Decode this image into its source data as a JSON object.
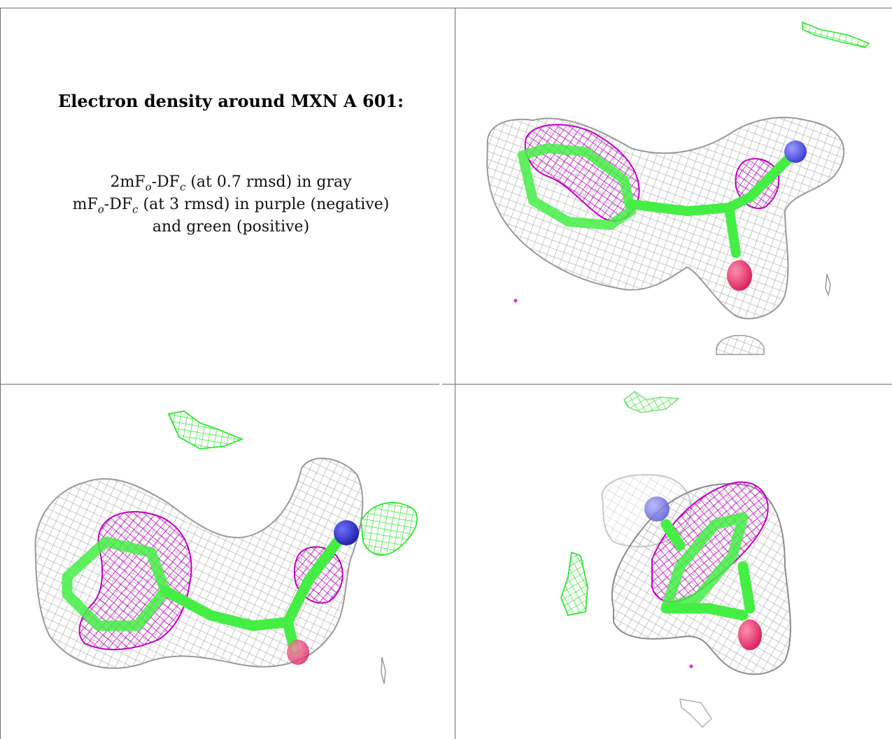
{
  "caption": {
    "title": "Electron density around MXN A 601:",
    "line1": {
      "pre": "2mF",
      "sub1": "o",
      "mid": "-DF",
      "sub2": "c",
      "post": " (at 0.7 rmsd) in gray"
    },
    "line2": {
      "pre": "mF",
      "sub1": "o",
      "mid": "-DF",
      "sub2": "c",
      "post": " (at 3 rmsd) in purple (negative)"
    },
    "line3": "and green (positive)"
  },
  "colors": {
    "map_2fofc": "#a9a9a9",
    "map_fofc_negative": "#c000c0",
    "map_fofc_positive": "#2ee62e",
    "carbon_stick": "#44ee44",
    "nitrogen": "#3b3bd6",
    "oxygen": "#e8336a",
    "frame": "#6e6e6e"
  },
  "panels": [
    {
      "name": "view-top-right"
    },
    {
      "name": "view-bottom-left"
    },
    {
      "name": "view-bottom-right"
    }
  ]
}
